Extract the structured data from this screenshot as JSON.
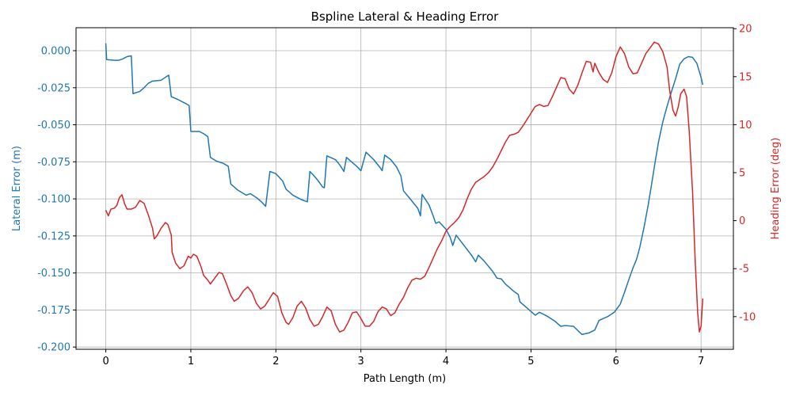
{
  "chart_data": {
    "type": "line",
    "title": "Bspline Lateral & Heading Error",
    "xlabel": "Path Length (m)",
    "ylabel_left": "Lateral Error (m)",
    "ylabel_right": "Heading Error (deg)",
    "xlim": [
      -0.35,
      7.38
    ],
    "ylim_left": [
      -0.2015,
      0.0155
    ],
    "ylim_right": [
      -13.4,
      20.1
    ],
    "x_ticks": [
      0,
      1,
      2,
      3,
      4,
      5,
      6,
      7
    ],
    "y_left_ticks": [
      0.0,
      -0.025,
      -0.05,
      -0.075,
      -0.1,
      -0.125,
      -0.15,
      -0.175,
      -0.2
    ],
    "y_right_ticks": [
      20,
      15,
      10,
      5,
      0,
      -5,
      -10
    ],
    "grid": true,
    "colors": {
      "lateral": "#1f77b4",
      "heading": "#d62728",
      "axis": "#000000",
      "grid": "#b0b0b0"
    },
    "series": [
      {
        "axis": "left",
        "color": "#1f77b4",
        "points": [
          [
            0.0,
            0.005
          ],
          [
            0.01,
            -0.006
          ],
          [
            0.1,
            -0.0065
          ],
          [
            0.15,
            -0.0065
          ],
          [
            0.2,
            -0.0055
          ],
          [
            0.25,
            -0.004
          ],
          [
            0.3,
            -0.0035
          ],
          [
            0.32,
            -0.029
          ],
          [
            0.4,
            -0.0275
          ],
          [
            0.45,
            -0.025
          ],
          [
            0.5,
            -0.022
          ],
          [
            0.55,
            -0.0205
          ],
          [
            0.65,
            -0.02
          ],
          [
            0.7,
            -0.018
          ],
          [
            0.74,
            -0.0165
          ],
          [
            0.77,
            -0.031
          ],
          [
            0.85,
            -0.033
          ],
          [
            0.95,
            -0.036
          ],
          [
            0.98,
            -0.037
          ],
          [
            1.0,
            -0.0545
          ],
          [
            1.1,
            -0.0545
          ],
          [
            1.15,
            -0.056
          ],
          [
            1.2,
            -0.058
          ],
          [
            1.23,
            -0.072
          ],
          [
            1.3,
            -0.0745
          ],
          [
            1.38,
            -0.076
          ],
          [
            1.44,
            -0.078
          ],
          [
            1.47,
            -0.09
          ],
          [
            1.55,
            -0.094
          ],
          [
            1.65,
            -0.0975
          ],
          [
            1.7,
            -0.0965
          ],
          [
            1.78,
            -0.0995
          ],
          [
            1.83,
            -0.102
          ],
          [
            1.88,
            -0.105
          ],
          [
            1.93,
            -0.0815
          ],
          [
            2.0,
            -0.083
          ],
          [
            2.08,
            -0.088
          ],
          [
            2.12,
            -0.0935
          ],
          [
            2.2,
            -0.0975
          ],
          [
            2.3,
            -0.1005
          ],
          [
            2.37,
            -0.102
          ],
          [
            2.4,
            -0.0815
          ],
          [
            2.45,
            -0.0845
          ],
          [
            2.5,
            -0.088
          ],
          [
            2.55,
            -0.092
          ],
          [
            2.57,
            -0.0925
          ],
          [
            2.6,
            -0.071
          ],
          [
            2.7,
            -0.0735
          ],
          [
            2.75,
            -0.077
          ],
          [
            2.8,
            -0.0815
          ],
          [
            2.83,
            -0.072
          ],
          [
            2.9,
            -0.0755
          ],
          [
            2.95,
            -0.078
          ],
          [
            3.0,
            -0.081
          ],
          [
            3.06,
            -0.0685
          ],
          [
            3.15,
            -0.0735
          ],
          [
            3.22,
            -0.0785
          ],
          [
            3.25,
            -0.081
          ],
          [
            3.28,
            -0.0705
          ],
          [
            3.35,
            -0.0735
          ],
          [
            3.42,
            -0.0785
          ],
          [
            3.47,
            -0.0845
          ],
          [
            3.5,
            -0.0945
          ],
          [
            3.6,
            -0.1015
          ],
          [
            3.67,
            -0.1065
          ],
          [
            3.7,
            -0.1115
          ],
          [
            3.72,
            -0.097
          ],
          [
            3.8,
            -0.104
          ],
          [
            3.85,
            -0.1115
          ],
          [
            3.88,
            -0.1165
          ],
          [
            3.92,
            -0.1155
          ],
          [
            4.0,
            -0.1205
          ],
          [
            4.05,
            -0.126
          ],
          [
            4.08,
            -0.1315
          ],
          [
            4.12,
            -0.1245
          ],
          [
            4.2,
            -0.1305
          ],
          [
            4.3,
            -0.138
          ],
          [
            4.35,
            -0.1425
          ],
          [
            4.38,
            -0.138
          ],
          [
            4.45,
            -0.142
          ],
          [
            4.55,
            -0.149
          ],
          [
            4.6,
            -0.1535
          ],
          [
            4.65,
            -0.154
          ],
          [
            4.7,
            -0.1575
          ],
          [
            4.8,
            -0.1625
          ],
          [
            4.85,
            -0.1645
          ],
          [
            4.87,
            -0.1695
          ],
          [
            4.95,
            -0.1735
          ],
          [
            5.05,
            -0.1785
          ],
          [
            5.1,
            -0.1765
          ],
          [
            5.2,
            -0.1795
          ],
          [
            5.28,
            -0.1825
          ],
          [
            5.32,
            -0.1845
          ],
          [
            5.35,
            -0.186
          ],
          [
            5.4,
            -0.1855
          ],
          [
            5.5,
            -0.186
          ],
          [
            5.58,
            -0.1905
          ],
          [
            5.6,
            -0.1915
          ],
          [
            5.68,
            -0.1905
          ],
          [
            5.75,
            -0.1885
          ],
          [
            5.8,
            -0.182
          ],
          [
            5.9,
            -0.1795
          ],
          [
            5.98,
            -0.1765
          ],
          [
            6.05,
            -0.171
          ],
          [
            6.1,
            -0.163
          ],
          [
            6.15,
            -0.1545
          ],
          [
            6.2,
            -0.1465
          ],
          [
            6.24,
            -0.141
          ],
          [
            6.28,
            -0.1325
          ],
          [
            6.33,
            -0.119
          ],
          [
            6.38,
            -0.1035
          ],
          [
            6.42,
            -0.0895
          ],
          [
            6.46,
            -0.075
          ],
          [
            6.5,
            -0.0615
          ],
          [
            6.55,
            -0.048
          ],
          [
            6.6,
            -0.0375
          ],
          [
            6.65,
            -0.028
          ],
          [
            6.7,
            -0.019
          ],
          [
            6.75,
            -0.009
          ],
          [
            6.8,
            -0.0055
          ],
          [
            6.85,
            -0.004
          ],
          [
            6.9,
            -0.0045
          ],
          [
            6.95,
            -0.0085
          ],
          [
            7.0,
            -0.018
          ],
          [
            7.02,
            -0.023
          ]
        ]
      },
      {
        "axis": "right",
        "color": "#d62728",
        "points": [
          [
            0.0,
            1.1
          ],
          [
            0.03,
            0.5
          ],
          [
            0.06,
            1.2
          ],
          [
            0.1,
            1.3
          ],
          [
            0.13,
            1.6
          ],
          [
            0.16,
            2.4
          ],
          [
            0.19,
            2.7
          ],
          [
            0.22,
            1.8
          ],
          [
            0.25,
            1.2
          ],
          [
            0.3,
            1.2
          ],
          [
            0.35,
            1.4
          ],
          [
            0.4,
            2.1
          ],
          [
            0.45,
            1.8
          ],
          [
            0.5,
            0.6
          ],
          [
            0.55,
            -0.8
          ],
          [
            0.57,
            -1.9
          ],
          [
            0.6,
            -1.6
          ],
          [
            0.65,
            -0.8
          ],
          [
            0.7,
            -0.2
          ],
          [
            0.73,
            -0.4
          ],
          [
            0.77,
            -1.5
          ],
          [
            0.78,
            -3.3
          ],
          [
            0.82,
            -4.4
          ],
          [
            0.87,
            -5.0
          ],
          [
            0.92,
            -4.7
          ],
          [
            0.97,
            -3.7
          ],
          [
            1.0,
            -3.9
          ],
          [
            1.03,
            -3.5
          ],
          [
            1.07,
            -3.7
          ],
          [
            1.12,
            -4.8
          ],
          [
            1.15,
            -5.7
          ],
          [
            1.2,
            -6.2
          ],
          [
            1.23,
            -6.6
          ],
          [
            1.28,
            -6.0
          ],
          [
            1.33,
            -5.4
          ],
          [
            1.37,
            -5.5
          ],
          [
            1.42,
            -6.6
          ],
          [
            1.47,
            -7.8
          ],
          [
            1.51,
            -8.4
          ],
          [
            1.56,
            -8.1
          ],
          [
            1.62,
            -7.3
          ],
          [
            1.67,
            -6.9
          ],
          [
            1.72,
            -7.5
          ],
          [
            1.77,
            -8.6
          ],
          [
            1.82,
            -9.2
          ],
          [
            1.87,
            -8.9
          ],
          [
            1.92,
            -8.2
          ],
          [
            1.97,
            -7.5
          ],
          [
            2.02,
            -7.9
          ],
          [
            2.07,
            -9.6
          ],
          [
            2.12,
            -10.6
          ],
          [
            2.15,
            -10.8
          ],
          [
            2.2,
            -10.1
          ],
          [
            2.25,
            -8.9
          ],
          [
            2.3,
            -8.4
          ],
          [
            2.35,
            -9.1
          ],
          [
            2.4,
            -10.3
          ],
          [
            2.45,
            -11.0
          ],
          [
            2.5,
            -10.8
          ],
          [
            2.55,
            -10.0
          ],
          [
            2.6,
            -9.0
          ],
          [
            2.65,
            -9.4
          ],
          [
            2.7,
            -10.8
          ],
          [
            2.75,
            -11.6
          ],
          [
            2.8,
            -11.4
          ],
          [
            2.85,
            -10.6
          ],
          [
            2.9,
            -9.6
          ],
          [
            2.95,
            -9.5
          ],
          [
            3.0,
            -10.2
          ],
          [
            3.05,
            -11.0
          ],
          [
            3.1,
            -11.0
          ],
          [
            3.15,
            -10.5
          ],
          [
            3.2,
            -9.5
          ],
          [
            3.25,
            -9.0
          ],
          [
            3.3,
            -9.2
          ],
          [
            3.35,
            -9.9
          ],
          [
            3.4,
            -9.6
          ],
          [
            3.45,
            -8.7
          ],
          [
            3.5,
            -8.0
          ],
          [
            3.55,
            -7.0
          ],
          [
            3.6,
            -6.2
          ],
          [
            3.65,
            -6.0
          ],
          [
            3.7,
            -6.1
          ],
          [
            3.75,
            -5.8
          ],
          [
            3.8,
            -4.9
          ],
          [
            3.85,
            -3.9
          ],
          [
            3.9,
            -2.9
          ],
          [
            3.95,
            -2.1
          ],
          [
            4.0,
            -1.1
          ],
          [
            4.05,
            -0.6
          ],
          [
            4.1,
            -0.2
          ],
          [
            4.15,
            0.3
          ],
          [
            4.2,
            1.1
          ],
          [
            4.25,
            2.3
          ],
          [
            4.3,
            3.3
          ],
          [
            4.35,
            4.0
          ],
          [
            4.4,
            4.3
          ],
          [
            4.45,
            4.6
          ],
          [
            4.5,
            5.0
          ],
          [
            4.55,
            5.6
          ],
          [
            4.6,
            6.4
          ],
          [
            4.65,
            7.3
          ],
          [
            4.7,
            8.2
          ],
          [
            4.75,
            8.9
          ],
          [
            4.8,
            9.0
          ],
          [
            4.85,
            9.2
          ],
          [
            4.9,
            9.8
          ],
          [
            4.95,
            10.5
          ],
          [
            5.0,
            11.2
          ],
          [
            5.05,
            11.9
          ],
          [
            5.1,
            12.1
          ],
          [
            5.15,
            11.9
          ],
          [
            5.2,
            12.0
          ],
          [
            5.25,
            12.9
          ],
          [
            5.3,
            13.9
          ],
          [
            5.35,
            14.9
          ],
          [
            5.4,
            14.8
          ],
          [
            5.45,
            13.7
          ],
          [
            5.5,
            13.2
          ],
          [
            5.55,
            14.1
          ],
          [
            5.6,
            15.4
          ],
          [
            5.65,
            16.6
          ],
          [
            5.7,
            16.5
          ],
          [
            5.73,
            15.5
          ],
          [
            5.75,
            16.4
          ],
          [
            5.8,
            15.4
          ],
          [
            5.85,
            14.7
          ],
          [
            5.9,
            14.4
          ],
          [
            5.95,
            15.4
          ],
          [
            6.0,
            17.1
          ],
          [
            6.05,
            18.1
          ],
          [
            6.1,
            17.4
          ],
          [
            6.15,
            16.0
          ],
          [
            6.2,
            15.3
          ],
          [
            6.25,
            15.4
          ],
          [
            6.3,
            16.4
          ],
          [
            6.35,
            17.4
          ],
          [
            6.4,
            18.0
          ],
          [
            6.45,
            18.6
          ],
          [
            6.5,
            18.4
          ],
          [
            6.55,
            17.6
          ],
          [
            6.6,
            16.0
          ],
          [
            6.63,
            13.6
          ],
          [
            6.67,
            11.5
          ],
          [
            6.7,
            10.9
          ],
          [
            6.73,
            11.8
          ],
          [
            6.76,
            13.2
          ],
          [
            6.8,
            13.7
          ],
          [
            6.83,
            12.9
          ],
          [
            6.86,
            9.4
          ],
          [
            6.9,
            3.0
          ],
          [
            6.93,
            -4.0
          ],
          [
            6.96,
            -9.6
          ],
          [
            6.98,
            -11.6
          ],
          [
            7.0,
            -11.0
          ],
          [
            7.02,
            -8.1
          ]
        ]
      }
    ]
  }
}
